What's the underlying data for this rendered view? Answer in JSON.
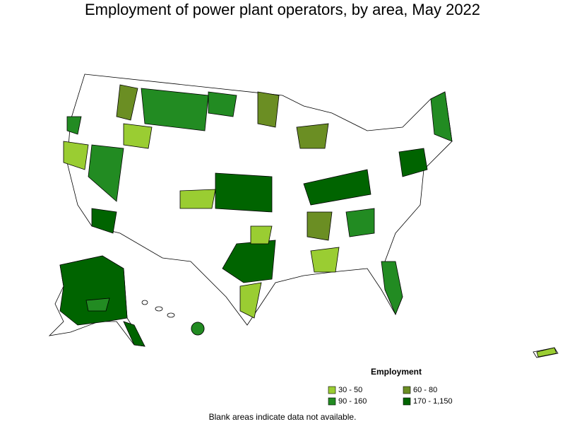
{
  "title": "Employment of power plant operators, by area, May 2022",
  "legend": {
    "title": "Employment",
    "items": [
      {
        "label": "30 - 50",
        "color": "#9acd32"
      },
      {
        "label": "60 - 80",
        "color": "#6b8e23"
      },
      {
        "label": "90 - 160",
        "color": "#228b22"
      },
      {
        "label": "170 - 1,150",
        "color": "#006400"
      }
    ]
  },
  "note": "Blank areas indicate data not available."
}
